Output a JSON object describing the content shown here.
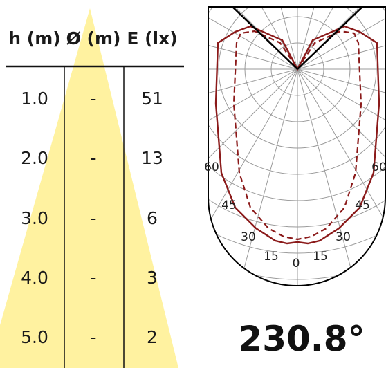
{
  "table": {
    "headers": {
      "height": "h (m)",
      "diameter": "Ø (m)",
      "illuminance": "E (lx)"
    },
    "rows": [
      {
        "h": "1.0",
        "d": "-",
        "e": "51"
      },
      {
        "h": "2.0",
        "d": "-",
        "e": "13"
      },
      {
        "h": "3.0",
        "d": "-",
        "e": "6"
      },
      {
        "h": "4.0",
        "d": "-",
        "e": "3"
      },
      {
        "h": "5.0",
        "d": "-",
        "e": "2"
      }
    ]
  },
  "beam_angle": "230.8°",
  "polar": {
    "angle_labels": {
      "left": [
        "0",
        "15",
        "30",
        "45",
        "60"
      ],
      "right": [
        "15",
        "30",
        "45",
        "60"
      ]
    }
  },
  "colors": {
    "cone": "#fff2a0",
    "curve": "#8b1a1a",
    "grid": "#9a9a9a",
    "outline": "#000000"
  }
}
